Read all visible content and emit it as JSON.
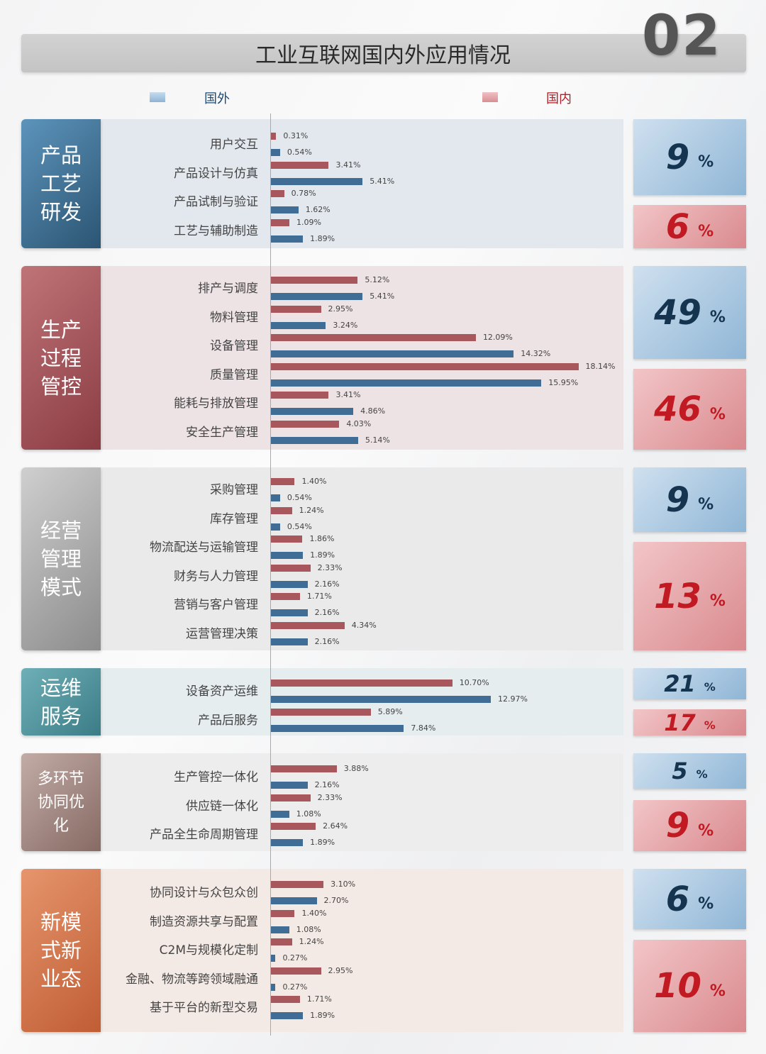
{
  "header": {
    "title": "工业互联网国内外应用情况",
    "number": "02"
  },
  "legend": [
    {
      "label": "国外",
      "color": "#3f6d96"
    },
    {
      "label": "国内",
      "color": "#a8575d"
    }
  ],
  "chart_data": {
    "type": "bar",
    "orientation": "horizontal",
    "unit": "%",
    "series_names": [
      "国内",
      "国外"
    ],
    "groups": [
      {
        "name": "产品工艺研发",
        "foreign_total": "9",
        "domestic_total": "6",
        "items": [
          {
            "label": "用户交互",
            "domestic": 0.31,
            "foreign": 0.54
          },
          {
            "label": "产品设计与仿真",
            "domestic": 3.41,
            "foreign": 5.41
          },
          {
            "label": "产品试制与验证",
            "domestic": 0.78,
            "foreign": 1.62
          },
          {
            "label": "工艺与辅助制造",
            "domestic": 1.09,
            "foreign": 1.89
          }
        ]
      },
      {
        "name": "生产过程管控",
        "foreign_total": "49",
        "domestic_total": "46",
        "items": [
          {
            "label": "排产与调度",
            "domestic": 5.12,
            "foreign": 5.41
          },
          {
            "label": "物料管理",
            "domestic": 2.95,
            "foreign": 3.24
          },
          {
            "label": "设备管理",
            "domestic": 12.09,
            "foreign": 14.32
          },
          {
            "label": "质量管理",
            "domestic": 18.14,
            "foreign": 15.95
          },
          {
            "label": "能耗与排放管理",
            "domestic": 3.41,
            "foreign": 4.86
          },
          {
            "label": "安全生产管理",
            "domestic": 4.03,
            "foreign": 5.14
          }
        ]
      },
      {
        "name": "经营管理模式",
        "foreign_total": "9",
        "domestic_total": "13",
        "items": [
          {
            "label": "采购管理",
            "domestic": 1.4,
            "foreign": 0.54
          },
          {
            "label": "库存管理",
            "domestic": 1.24,
            "foreign": 0.54
          },
          {
            "label": "物流配送与运输管理",
            "domestic": 1.86,
            "foreign": 1.89
          },
          {
            "label": "财务与人力管理",
            "domestic": 2.33,
            "foreign": 2.16
          },
          {
            "label": "营销与客户管理",
            "domestic": 1.71,
            "foreign": 2.16
          },
          {
            "label": "运营管理决策",
            "domestic": 4.34,
            "foreign": 2.16
          }
        ]
      },
      {
        "name": "运维服务",
        "foreign_total": "21",
        "domestic_total": "17",
        "items": [
          {
            "label": "设备资产运维",
            "domestic": 10.7,
            "foreign": 12.97
          },
          {
            "label": "产品后服务",
            "domestic": 5.89,
            "foreign": 7.84
          }
        ]
      },
      {
        "name": "多环节协同优化",
        "foreign_total": "5",
        "domestic_total": "9",
        "items": [
          {
            "label": "生产管控一体化",
            "domestic": 3.88,
            "foreign": 2.16
          },
          {
            "label": "供应链一体化",
            "domestic": 2.33,
            "foreign": 1.08
          },
          {
            "label": "产品全生命周期管理",
            "domestic": 2.64,
            "foreign": 1.89
          }
        ]
      },
      {
        "name": "新模式新业态",
        "foreign_total": "6",
        "domestic_total": "10",
        "items": [
          {
            "label": "协同设计与众包众创",
            "domestic": 3.1,
            "foreign": 2.7
          },
          {
            "label": "制造资源共享与配置",
            "domestic": 1.4,
            "foreign": 1.08
          },
          {
            "label": "C2M与规模化定制",
            "domestic": 1.24,
            "foreign": 0.27
          },
          {
            "label": "金融、物流等跨领域融通",
            "domestic": 2.95,
            "foreign": 0.27
          },
          {
            "label": "基于平台的新型交易",
            "domestic": 1.71,
            "foreign": 1.89
          }
        ]
      }
    ]
  },
  "percent_unit": "%"
}
